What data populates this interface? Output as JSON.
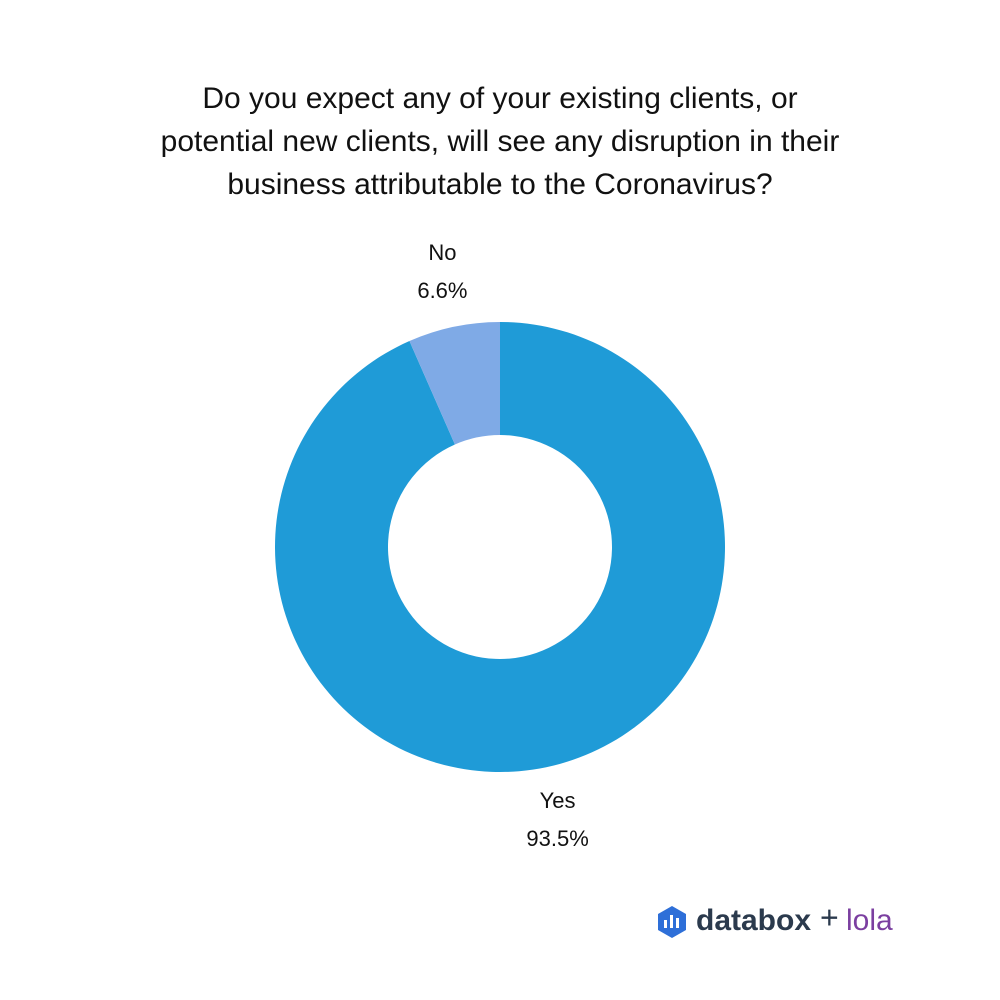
{
  "chart_data": {
    "type": "donut",
    "title": [
      "Do you expect any of your existing clients, or",
      "potential new clients, will see any disruption in their",
      "business attributable to the Coronavirus?"
    ],
    "categories": [
      "Yes",
      "No"
    ],
    "values": [
      93.5,
      6.6
    ],
    "value_labels": [
      "93.5%",
      "6.6%"
    ],
    "colors": [
      "#1f9bd7",
      "#7faae6"
    ]
  },
  "branding": [
    "databox",
    "+",
    "lola"
  ]
}
